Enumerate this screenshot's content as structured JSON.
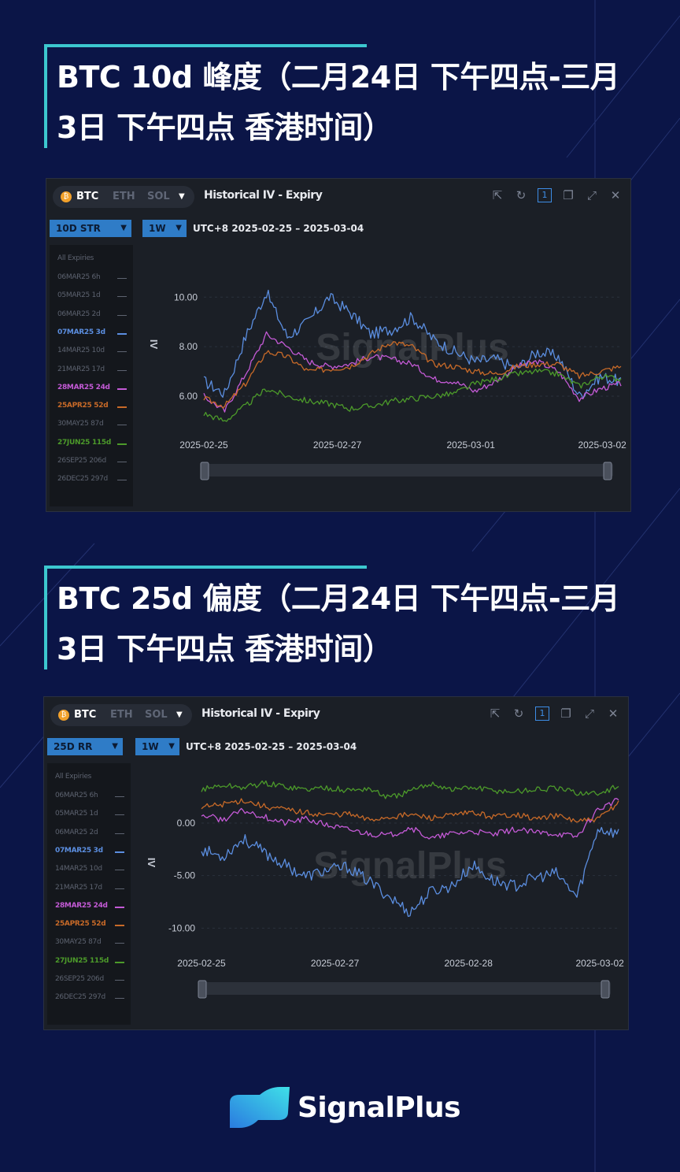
{
  "colors": {
    "background": "#0b1547",
    "accent": "#3cc7cf",
    "blue": "#5b8ee0",
    "magenta": "#c45ad6",
    "orange": "#c86a28",
    "green": "#4c9a2a"
  },
  "charts_meta": [
    {
      "heading": "BTC 10d 峰度（二月24日 下午四点-三月3日 下午四点 香港时间）",
      "coins": [
        "BTC",
        "ETH",
        "SOL"
      ],
      "panel_title": "Historical IV - Expiry",
      "metric": "10D STR",
      "period": "1W",
      "range": "UTC+8 2025-02-25 – 2025-03-04",
      "ylabel": "IV"
    },
    {
      "heading": "BTC 25d 偏度（二月24日 下午四点-三月3日 下午四点 香港时间）",
      "coins": [
        "BTC",
        "ETH",
        "SOL"
      ],
      "panel_title": "Historical IV - Expiry",
      "metric": "25D RR",
      "period": "1W",
      "range": "UTC+8 2025-02-25 – 2025-03-04",
      "ylabel": "IV"
    }
  ],
  "legend": {
    "header": "All Expiries",
    "items": [
      {
        "label": "06MAR25 6h",
        "color": "#5d6370",
        "active": false
      },
      {
        "label": "05MAR25 1d",
        "color": "#5d6370",
        "active": false
      },
      {
        "label": "06MAR25 2d",
        "color": "#5d6370",
        "active": false
      },
      {
        "label": "07MAR25 3d",
        "color": "#5b8ee0",
        "active": true
      },
      {
        "label": "14MAR25 10d",
        "color": "#5d6370",
        "active": false
      },
      {
        "label": "21MAR25 17d",
        "color": "#5d6370",
        "active": false
      },
      {
        "label": "28MAR25 24d",
        "color": "#c45ad6",
        "active": true
      },
      {
        "label": "25APR25 52d",
        "color": "#c86a28",
        "active": true
      },
      {
        "label": "30MAY25 87d",
        "color": "#5d6370",
        "active": false
      },
      {
        "label": "27JUN25 115d",
        "color": "#4c9a2a",
        "active": true
      },
      {
        "label": "26SEP25 206d",
        "color": "#5d6370",
        "active": false
      },
      {
        "label": "26DEC25 297d",
        "color": "#5d6370",
        "active": false
      }
    ]
  },
  "chart_data": [
    {
      "type": "line",
      "ylabel": "IV",
      "x_ticks": [
        "2025-02-25",
        "2025-02-27",
        "2025-03-01",
        "2025-03-02"
      ],
      "y_ticks": [
        "6.00",
        "8.00",
        "10.00"
      ],
      "ylim": [
        4.6,
        11.6
      ],
      "x": [
        0,
        0.05,
        0.1,
        0.15,
        0.2,
        0.25,
        0.3,
        0.35,
        0.4,
        0.45,
        0.5,
        0.55,
        0.6,
        0.65,
        0.7,
        0.75,
        0.8,
        0.85,
        0.9,
        0.95,
        1
      ],
      "series": [
        {
          "name": "07MAR25 3d",
          "color": "#5b8ee0",
          "values": [
            6.6,
            6.1,
            8.4,
            10.2,
            8.4,
            9.0,
            10.0,
            9.4,
            8.5,
            8.7,
            9.2,
            8.3,
            7.8,
            7.4,
            7.5,
            7.1,
            7.8,
            7.6,
            6.0,
            6.8,
            6.6
          ]
        },
        {
          "name": "28MAR25 24d",
          "color": "#c45ad6",
          "values": [
            6.0,
            5.4,
            6.9,
            8.5,
            8.0,
            7.4,
            7.2,
            7.3,
            7.6,
            7.5,
            7.3,
            6.7,
            6.6,
            6.2,
            6.6,
            7.2,
            7.4,
            7.0,
            5.9,
            6.3,
            6.5
          ]
        },
        {
          "name": "25APR25 52d",
          "color": "#c86a28",
          "values": [
            5.9,
            5.6,
            6.5,
            7.8,
            7.6,
            7.0,
            7.1,
            7.2,
            7.7,
            8.2,
            8.0,
            7.3,
            7.2,
            7.0,
            6.9,
            7.2,
            7.3,
            7.3,
            6.8,
            7.0,
            7.2
          ]
        },
        {
          "name": "27JUN25 115d",
          "color": "#4c9a2a",
          "values": [
            5.3,
            5.0,
            5.6,
            6.3,
            6.0,
            5.8,
            5.7,
            5.5,
            5.6,
            5.8,
            5.9,
            6.0,
            6.1,
            6.5,
            6.7,
            6.9,
            7.0,
            6.9,
            6.4,
            6.8,
            6.7
          ]
        }
      ]
    },
    {
      "type": "line",
      "ylabel": "IV",
      "x_ticks": [
        "2025-02-25",
        "2025-02-27",
        "2025-02-28",
        "2025-03-02"
      ],
      "y_ticks": [
        "-10.00",
        "-5.00",
        "0.00"
      ],
      "ylim": [
        -12.0,
        4.5
      ],
      "x": [
        0,
        0.05,
        0.1,
        0.15,
        0.2,
        0.25,
        0.3,
        0.35,
        0.4,
        0.45,
        0.5,
        0.55,
        0.6,
        0.65,
        0.7,
        0.75,
        0.8,
        0.85,
        0.9,
        0.95,
        1
      ],
      "series": [
        {
          "name": "07MAR25 3d",
          "color": "#5b8ee0",
          "values": [
            -2.5,
            -3.2,
            -1.5,
            -2.8,
            -4.0,
            -5.1,
            -4.5,
            -4.2,
            -5.5,
            -7.0,
            -8.5,
            -6.5,
            -6.0,
            -4.0,
            -5.5,
            -6.0,
            -5.2,
            -4.8,
            -7.0,
            -0.5,
            -1.0
          ]
        },
        {
          "name": "28MAR25 24d",
          "color": "#c45ad6",
          "values": [
            0.8,
            0.3,
            1.2,
            0.6,
            0.0,
            0.4,
            -0.2,
            -0.6,
            -1.0,
            -1.2,
            -0.4,
            -1.5,
            -1.0,
            -0.8,
            -1.1,
            -0.6,
            -0.9,
            -1.0,
            -1.3,
            1.3,
            2.2
          ]
        },
        {
          "name": "25APR25 52d",
          "color": "#c86a28",
          "values": [
            1.5,
            1.8,
            2.2,
            1.6,
            1.3,
            1.0,
            0.8,
            0.9,
            0.3,
            0.6,
            0.8,
            0.5,
            0.7,
            1.0,
            0.6,
            0.9,
            0.4,
            0.7,
            0.2,
            0.3,
            2.0
          ]
        },
        {
          "name": "27JUN25 115d",
          "color": "#4c9a2a",
          "values": [
            3.2,
            3.6,
            3.4,
            3.8,
            3.5,
            3.2,
            3.4,
            3.1,
            3.3,
            2.4,
            3.0,
            3.8,
            3.2,
            3.4,
            3.1,
            3.0,
            3.2,
            3.3,
            2.9,
            2.8,
            3.5
          ]
        }
      ]
    }
  ],
  "watermark": "SignalPlus",
  "footer_logo": "SignalPlus"
}
